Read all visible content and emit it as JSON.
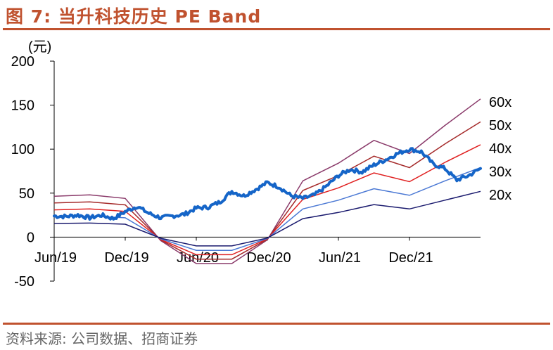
{
  "figure": {
    "title": "图 7:  当升科技历史 PE Band",
    "source": "资料来源:  公司数据、招商证券"
  },
  "colors": {
    "accent": "#c0522f",
    "price": "#1565c8",
    "band_20x": "#1a1a6e",
    "band_30x": "#4a78d4",
    "band_40x": "#e02020",
    "band_50x": "#a52a2a",
    "band_60x": "#8a3a6a"
  },
  "chart_data": {
    "type": "line",
    "ylabel": "(元)",
    "ylim": [
      -50,
      200
    ],
    "y_ticks": [
      "200",
      "150",
      "100",
      "50",
      "0",
      "-50"
    ],
    "x_range": [
      "2019-06",
      "2022-06"
    ],
    "x_ticks": [
      "Jun/19",
      "Dec/19",
      "Jun/20",
      "Dec/20",
      "Jun/21",
      "Dec/21"
    ],
    "grid": false,
    "legend": "inline-right",
    "eps_quarters": [
      "2019-06",
      "2019-09",
      "2019-12",
      "2020-03",
      "2020-06",
      "2020-09",
      "2020-12",
      "2021-03",
      "2021-06",
      "2021-09",
      "2021-12",
      "2022-03",
      "2022-06"
    ],
    "series": [
      {
        "name": "60x",
        "multiple": 60,
        "values": [
          46.5,
          48,
          44,
          -4,
          -30,
          -30,
          -3,
          64,
          84,
          110,
          95,
          127,
          157
        ]
      },
      {
        "name": "50x",
        "multiple": 50,
        "values": [
          38.8,
          40,
          36.7,
          -3.3,
          -25,
          -25,
          -2.5,
          53,
          70,
          92,
          79,
          106,
          131
        ]
      },
      {
        "name": "40x",
        "multiple": 40,
        "values": [
          31,
          32,
          29.3,
          -2.7,
          -20,
          -20,
          -2,
          43,
          56,
          73,
          63,
          85,
          105
        ]
      },
      {
        "name": "30x",
        "multiple": 30,
        "values": [
          23.3,
          24,
          22,
          -2,
          -15,
          -15,
          -1.5,
          32,
          42,
          55,
          47.5,
          64,
          79
        ]
      },
      {
        "name": "20x",
        "multiple": 20,
        "values": [
          15.5,
          16,
          14.7,
          -1.3,
          -10,
          -10,
          -1,
          21,
          28,
          37,
          32,
          42,
          52
        ]
      }
    ],
    "price": {
      "dates": [
        "2019-06",
        "2019-07",
        "2019-08",
        "2019-09",
        "2019-10",
        "2019-11",
        "2019-12",
        "2020-01",
        "2020-02",
        "2020-03",
        "2020-04",
        "2020-05",
        "2020-06",
        "2020-07",
        "2020-08",
        "2020-09",
        "2020-10",
        "2020-11",
        "2020-12",
        "2021-01",
        "2021-02",
        "2021-03",
        "2021-04",
        "2021-05",
        "2021-06",
        "2021-07",
        "2021-08",
        "2021-09",
        "2021-10",
        "2021-11",
        "2021-12",
        "2022-01",
        "2022-02",
        "2022-03",
        "2022-04",
        "2022-05",
        "2022-06"
      ],
      "values": [
        24,
        23.5,
        25,
        22,
        25,
        21,
        29,
        35,
        27,
        22,
        24,
        26,
        33,
        34,
        40,
        52,
        47,
        54,
        62,
        57,
        47,
        44,
        48,
        58,
        70,
        77,
        74,
        82,
        88,
        95,
        100,
        97,
        83,
        78,
        65,
        70,
        78
      ]
    }
  }
}
